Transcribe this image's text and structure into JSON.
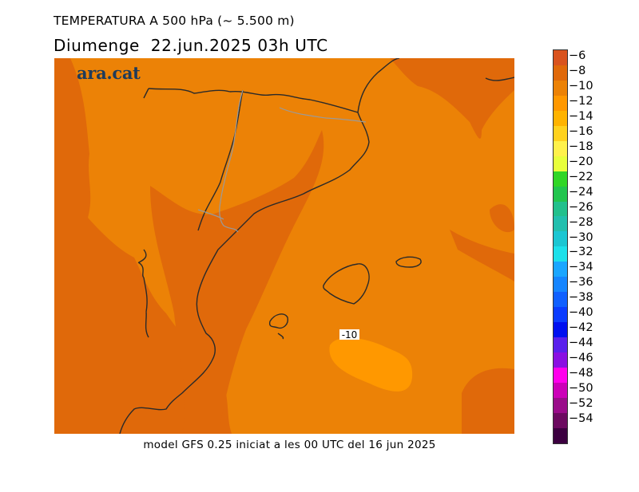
{
  "header": {
    "title": "TEMPERATURA A 500 hPa (~ 5.500 m)",
    "subtitle": "Diumenge  22.jun.2025 03h UTC"
  },
  "map": {
    "logo": "ara.cat",
    "contour_label": "-10",
    "colors": {
      "warm_band": "#e0690a",
      "mid_band": "#ec8206",
      "cool_band": "#ff9800",
      "border_line": "#2a2a2a",
      "region_line": "#9a9a9a",
      "ocean_line": "#2a2a2a"
    }
  },
  "footer": {
    "text": "model GFS 0.25 iniciat a les 00 UTC del 16 jun 2025"
  },
  "colorbar": {
    "labels": [
      "-6",
      "-8",
      "-10",
      "-12",
      "-14",
      "-16",
      "-18",
      "-20",
      "-22",
      "-24",
      "-26",
      "-28",
      "-30",
      "-32",
      "-34",
      "-36",
      "-38",
      "-40",
      "-42",
      "-44",
      "-46",
      "-48",
      "-50",
      "-52",
      "-54"
    ],
    "colors": [
      "#d9531e",
      "#e0690a",
      "#ec8206",
      "#ff9800",
      "#ffb300",
      "#ffd21e",
      "#fff14b",
      "#e8ff3c",
      "#30d626",
      "#22c54e",
      "#22c08c",
      "#22bfae",
      "#1bc6d2",
      "#1de0ea",
      "#1aa6ff",
      "#1585ff",
      "#1060ff",
      "#0b3cff",
      "#0010f0",
      "#5a20ec",
      "#8a10e2",
      "#ff00ec",
      "#cc00b8",
      "#9a0c8a",
      "#6c0a60",
      "#3c0040"
    ]
  }
}
